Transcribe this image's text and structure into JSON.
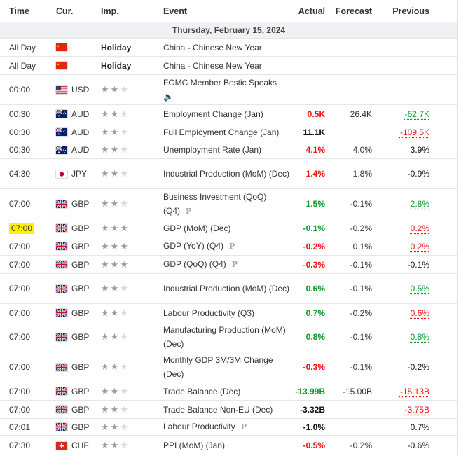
{
  "headers": {
    "time": "Time",
    "currency": "Cur.",
    "importance": "Imp.",
    "event": "Event",
    "actual": "Actual",
    "forecast": "Forecast",
    "previous": "Previous"
  },
  "date_label": "Thursday, February 15, 2024",
  "colors": {
    "positive": "#0a9a2c",
    "negative": "#ee1111",
    "highlight": "#fff200",
    "date_bg": "#eff1f4"
  },
  "rows": [
    {
      "time": "All Day",
      "currency": "",
      "flag": "china-flag",
      "importance": "Holiday",
      "stars": 0,
      "event": "China - Chinese New Year",
      "actual": "",
      "forecast": "",
      "previous": ""
    },
    {
      "time": "All Day",
      "currency": "",
      "flag": "china-flag",
      "importance": "Holiday",
      "stars": 0,
      "event": "China - Chinese New Year",
      "actual": "",
      "forecast": "",
      "previous": ""
    },
    {
      "time": "00:00",
      "currency": "USD",
      "flag": "us-flag",
      "importance": "",
      "stars": 2,
      "event": "FOMC Member Bostic Speaks",
      "actual": "",
      "forecast": "",
      "previous": "",
      "speech_icon": "speaker-icon"
    },
    {
      "time": "00:30",
      "currency": "AUD",
      "flag": "australia-flag",
      "stars": 2,
      "event": "Employment Change (Jan)",
      "actual": "0.5K",
      "actual_color": "red",
      "forecast": "26.4K",
      "previous": "-62.7K",
      "previous_color": "green"
    },
    {
      "time": "00:30",
      "currency": "AUD",
      "flag": "australia-flag",
      "stars": 2,
      "event": "Full Employment Change (Jan)",
      "actual": "11.1K",
      "actual_color": "black",
      "forecast": "",
      "previous": "-109.5K",
      "previous_color": "red"
    },
    {
      "time": "00:30",
      "currency": "AUD",
      "flag": "australia-flag",
      "stars": 2,
      "event": "Unemployment Rate (Jan)",
      "actual": "4.1%",
      "actual_color": "red",
      "forecast": "4.0%",
      "previous": "3.9%",
      "previous_color": "plain"
    },
    {
      "time": "04:30",
      "currency": "JPY",
      "flag": "japan-flag",
      "stars": 2,
      "event": "Industrial Production (MoM) (Dec)",
      "actual": "1.4%",
      "actual_color": "red",
      "forecast": "1.8%",
      "previous": "-0.9%",
      "previous_color": "plain"
    },
    {
      "time": "07:00",
      "currency": "GBP",
      "flag": "uk-flag",
      "stars": 2,
      "event": "Business Investment (QoQ) (Q4)",
      "preliminary": "P",
      "actual": "1.5%",
      "actual_color": "green",
      "forecast": "-0.1%",
      "previous": "2.8%",
      "previous_color": "green"
    },
    {
      "time": "07:00",
      "currency": "GBP",
      "flag": "uk-flag",
      "stars": 3,
      "event": "GDP (MoM) (Dec)",
      "highlight": true,
      "actual": "-0.1%",
      "actual_color": "green",
      "forecast": "-0.2%",
      "previous": "0.2%",
      "previous_color": "red"
    },
    {
      "time": "07:00",
      "currency": "GBP",
      "flag": "uk-flag",
      "stars": 3,
      "event": "GDP (YoY) (Q4)",
      "preliminary": "P",
      "actual": "-0.2%",
      "actual_color": "red",
      "forecast": "0.1%",
      "previous": "0.2%",
      "previous_color": "red"
    },
    {
      "time": "07:00",
      "currency": "GBP",
      "flag": "uk-flag",
      "stars": 3,
      "event": "GDP (QoQ) (Q4)",
      "preliminary": "P",
      "actual": "-0.3%",
      "actual_color": "red",
      "forecast": "-0.1%",
      "previous": "-0.1%",
      "previous_color": "plain"
    },
    {
      "time": "07:00",
      "currency": "GBP",
      "flag": "uk-flag",
      "stars": 2,
      "event": "Industrial Production (MoM) (Dec)",
      "actual": "0.6%",
      "actual_color": "green",
      "forecast": "-0.1%",
      "previous": "0.5%",
      "previous_color": "green"
    },
    {
      "time": "07:00",
      "currency": "GBP",
      "flag": "uk-flag",
      "stars": 2,
      "event": "Labour Productivity (Q3)",
      "actual": "0.7%",
      "actual_color": "green",
      "forecast": "-0.2%",
      "previous": "0.6%",
      "previous_color": "red"
    },
    {
      "time": "07:00",
      "currency": "GBP",
      "flag": "uk-flag",
      "stars": 2,
      "event": "Manufacturing Production (MoM) (Dec)",
      "actual": "0.8%",
      "actual_color": "green",
      "forecast": "-0.1%",
      "previous": "0.8%",
      "previous_color": "green"
    },
    {
      "time": "07:00",
      "currency": "GBP",
      "flag": "uk-flag",
      "stars": 2,
      "event": "Monthly GDP 3M/3M Change (Dec)",
      "actual": "-0.3%",
      "actual_color": "red",
      "forecast": "-0.1%",
      "previous": "-0.2%",
      "previous_color": "plain"
    },
    {
      "time": "07:00",
      "currency": "GBP",
      "flag": "uk-flag",
      "stars": 2,
      "event": "Trade Balance (Dec)",
      "actual": "-13.99B",
      "actual_color": "green",
      "forecast": "-15.00B",
      "previous": "-15.13B",
      "previous_color": "red"
    },
    {
      "time": "07:00",
      "currency": "GBP",
      "flag": "uk-flag",
      "stars": 2,
      "event": "Trade Balance Non-EU (Dec)",
      "actual": "-3.32B",
      "actual_color": "black",
      "forecast": "",
      "previous": "-3.75B",
      "previous_color": "red"
    },
    {
      "time": "07:01",
      "currency": "GBP",
      "flag": "uk-flag",
      "stars": 2,
      "event": "Labour Productivity",
      "preliminary": "P",
      "actual": "-1.0%",
      "actual_color": "black",
      "forecast": "",
      "previous": "0.7%",
      "previous_color": "plain"
    },
    {
      "time": "07:30",
      "currency": "CHF",
      "flag": "switzerland-flag",
      "stars": 2,
      "event": "PPI (MoM) (Jan)",
      "actual": "-0.5%",
      "actual_color": "red",
      "forecast": "-0.2%",
      "previous": "-0.6%",
      "previous_color": "plain"
    }
  ]
}
